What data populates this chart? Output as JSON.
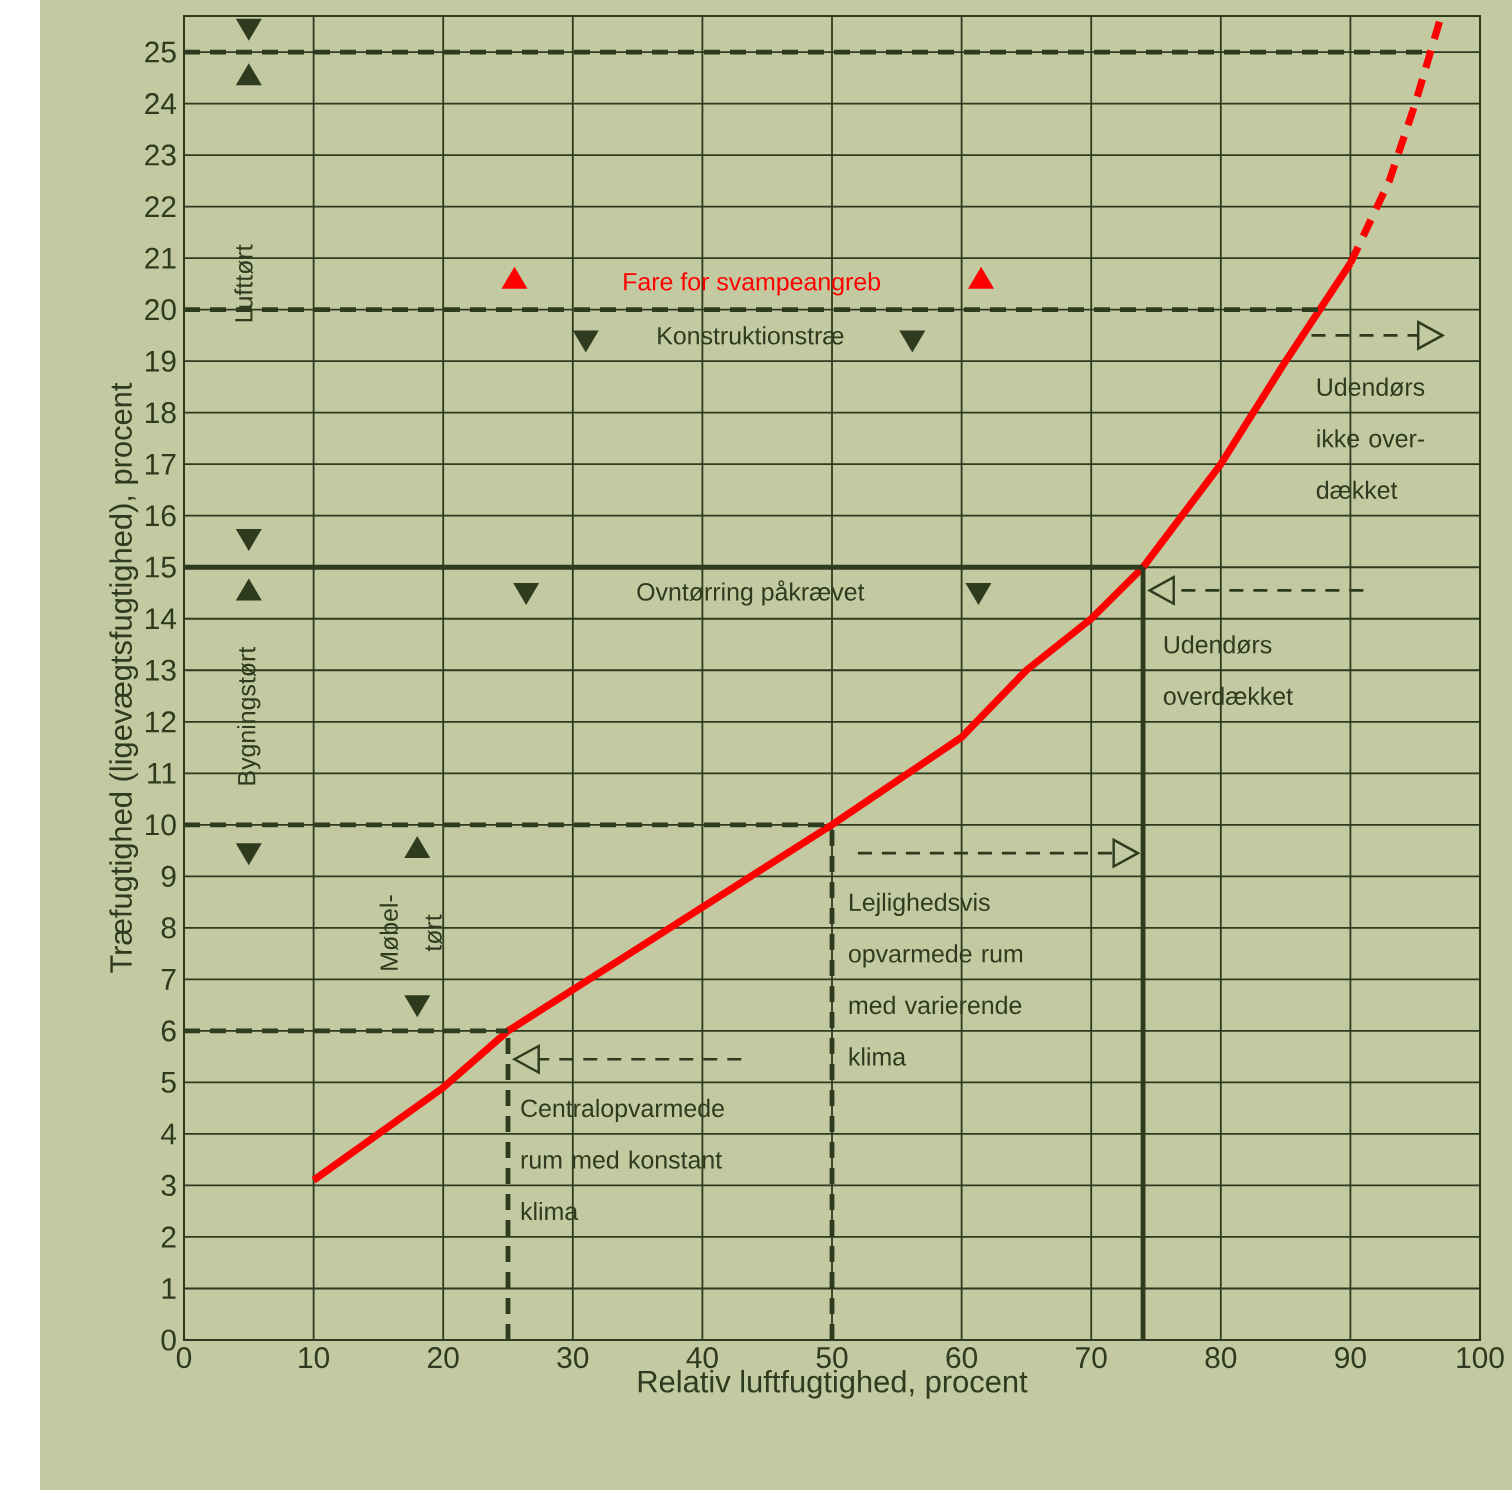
{
  "chart_data": {
    "type": "line",
    "xlabel": "Relativ luftfugtighed, procent",
    "ylabel": "Træfugtighed (ligevægtsfugtighed), procent",
    "xlim": [
      0,
      100
    ],
    "ylim": [
      0,
      25.7
    ],
    "xticks": [
      0,
      10,
      20,
      30,
      40,
      50,
      60,
      70,
      80,
      90,
      100
    ],
    "yticks": [
      0,
      1,
      2,
      3,
      4,
      5,
      6,
      7,
      8,
      9,
      10,
      11,
      12,
      13,
      14,
      15,
      16,
      17,
      18,
      19,
      20,
      21,
      22,
      23,
      24,
      25
    ],
    "grid": true,
    "marker": "none",
    "series": [
      {
        "color": "#ff0000",
        "line_style": "solid",
        "x": [
          10,
          20,
          25,
          30,
          40,
          50,
          60,
          65,
          70,
          74,
          80,
          85,
          90
        ],
        "values": [
          3.1,
          4.9,
          6,
          6.8,
          8.4,
          10,
          11.7,
          13,
          14,
          15,
          17,
          19,
          20.9
        ]
      },
      {
        "color": "#ff0000",
        "line_style": "dashed",
        "x": [
          90,
          93,
          95,
          97
        ],
        "values": [
          20.9,
          22.5,
          24,
          25.7
        ]
      },
      {
        "type": "line",
        "color": "#2e3b1e",
        "line_style": "dashed",
        "x": [
          0,
          96
        ],
        "values": [
          25,
          25
        ]
      },
      {
        "type": "line",
        "color": "#2e3b1e",
        "line_style": "dashed",
        "x": [
          0,
          88
        ],
        "values": [
          20,
          20
        ]
      },
      {
        "type": "line",
        "color": "#2e3b1e",
        "line_style": "solid",
        "x": [
          0,
          74
        ],
        "values": [
          15,
          15
        ]
      },
      {
        "type": "line",
        "color": "#2e3b1e",
        "line_style": "dashed",
        "x": [
          0,
          50
        ],
        "values": [
          10,
          10
        ]
      },
      {
        "type": "line",
        "color": "#2e3b1e",
        "line_style": "dashed",
        "x": [
          0,
          25
        ],
        "values": [
          6,
          6
        ]
      },
      {
        "type": "line",
        "color": "#2e3b1e",
        "line_style": "dashed",
        "x": [
          25,
          25
        ],
        "values": [
          0,
          6
        ]
      },
      {
        "type": "line",
        "color": "#2e3b1e",
        "line_style": "dashed",
        "x": [
          50,
          50
        ],
        "values": [
          0,
          10
        ]
      },
      {
        "type": "line",
        "color": "#2e3b1e",
        "line_style": "solid",
        "x": [
          74,
          74
        ],
        "values": [
          0,
          15
        ]
      }
    ],
    "annotations": [
      "Lufttørt",
      "Bygningstørt",
      "Møbel-tørt",
      "Fare for svampeangreb",
      "Konstruktionstræ",
      "Ovntørring påkrævet",
      "Udendørs ikke over-dækket",
      "Udendørs overdækket",
      "Lejlighedsvis opvarmede rum med varierende klima",
      "Centralopvarmede rum med konstant klima"
    ]
  }
}
